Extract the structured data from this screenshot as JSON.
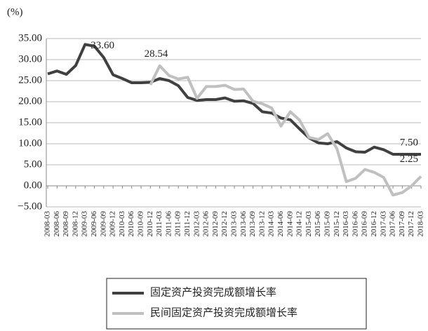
{
  "chart_data": {
    "type": "line",
    "y_label": "(%)",
    "categories": [
      "2008-03",
      "2008-06",
      "2008-09",
      "2008-12",
      "2009-03",
      "2009-06",
      "2009-09",
      "2009-12",
      "2010-03",
      "2010-06",
      "2010-09",
      "2010-12",
      "2011-03",
      "2011-06",
      "2011-09",
      "2011-12",
      "2012-03",
      "2012-06",
      "2012-09",
      "2012-12",
      "2013-03",
      "2013-06",
      "2013-09",
      "2013-12",
      "2014-03",
      "2014-06",
      "2014-09",
      "2014-12",
      "2015-03",
      "2015-06",
      "2015-09",
      "2015-12",
      "2016-03",
      "2016-06",
      "2016-09",
      "2016-12",
      "2017-03",
      "2017-06",
      "2017-09",
      "2017-12",
      "2018-03"
    ],
    "series": [
      {
        "name": "固定资产投资完成额增长率",
        "color": "#404040",
        "values": [
          26.6,
          27.3,
          26.5,
          28.6,
          33.6,
          33.2,
          30.5,
          26.4,
          25.5,
          24.5,
          24.5,
          24.6,
          25.5,
          25.0,
          23.8,
          21.0,
          20.3,
          20.5,
          20.5,
          20.9,
          20.1,
          20.2,
          19.6,
          17.6,
          17.3,
          16.1,
          15.7,
          13.5,
          11.4,
          10.2,
          10.0,
          10.5,
          9.0,
          8.1,
          8.0,
          9.2,
          8.6,
          7.5,
          7.5,
          7.5,
          7.5
        ],
        "value_labels": [
          null,
          null,
          null,
          null,
          "33.60",
          null,
          null,
          null,
          null,
          null,
          null,
          null,
          null,
          null,
          null,
          null,
          null,
          null,
          null,
          null,
          null,
          null,
          null,
          null,
          null,
          null,
          null,
          null,
          null,
          null,
          null,
          null,
          null,
          null,
          null,
          null,
          null,
          null,
          null,
          null,
          "7.50"
        ]
      },
      {
        "name": "民间固定资产投资完成额增长率",
        "color": "#c0c0c0",
        "values": [
          null,
          null,
          null,
          null,
          null,
          null,
          null,
          null,
          null,
          null,
          null,
          24.0,
          28.54,
          26.2,
          25.4,
          25.8,
          20.8,
          23.6,
          23.6,
          23.9,
          22.9,
          23.0,
          20.1,
          19.5,
          18.5,
          14.2,
          17.6,
          15.6,
          11.5,
          11.0,
          12.4,
          8.8,
          1.0,
          1.8,
          3.9,
          3.2,
          2.0,
          -2.2,
          -1.6,
          0.0,
          2.25
        ],
        "value_labels": [
          null,
          null,
          null,
          null,
          null,
          null,
          null,
          null,
          null,
          null,
          null,
          null,
          "28.54",
          null,
          null,
          null,
          null,
          null,
          null,
          null,
          null,
          null,
          null,
          null,
          null,
          null,
          null,
          null,
          null,
          null,
          null,
          null,
          null,
          null,
          null,
          null,
          null,
          null,
          null,
          null,
          "2.25"
        ]
      }
    ],
    "ylim": [
      -5,
      35
    ],
    "yticks": [
      {
        "value": 35,
        "label": "35.00"
      },
      {
        "value": 30,
        "label": "30.00"
      },
      {
        "value": 25,
        "label": "25.00"
      },
      {
        "value": 20,
        "label": "20.00"
      },
      {
        "value": 15,
        "label": "15.00"
      },
      {
        "value": 10,
        "label": "10.00"
      },
      {
        "value": 5,
        "label": "5.00"
      },
      {
        "value": 0,
        "label": "0.00"
      },
      {
        "value": -5,
        "label": "−5.00"
      }
    ],
    "grid": true,
    "legend": "bottom"
  }
}
